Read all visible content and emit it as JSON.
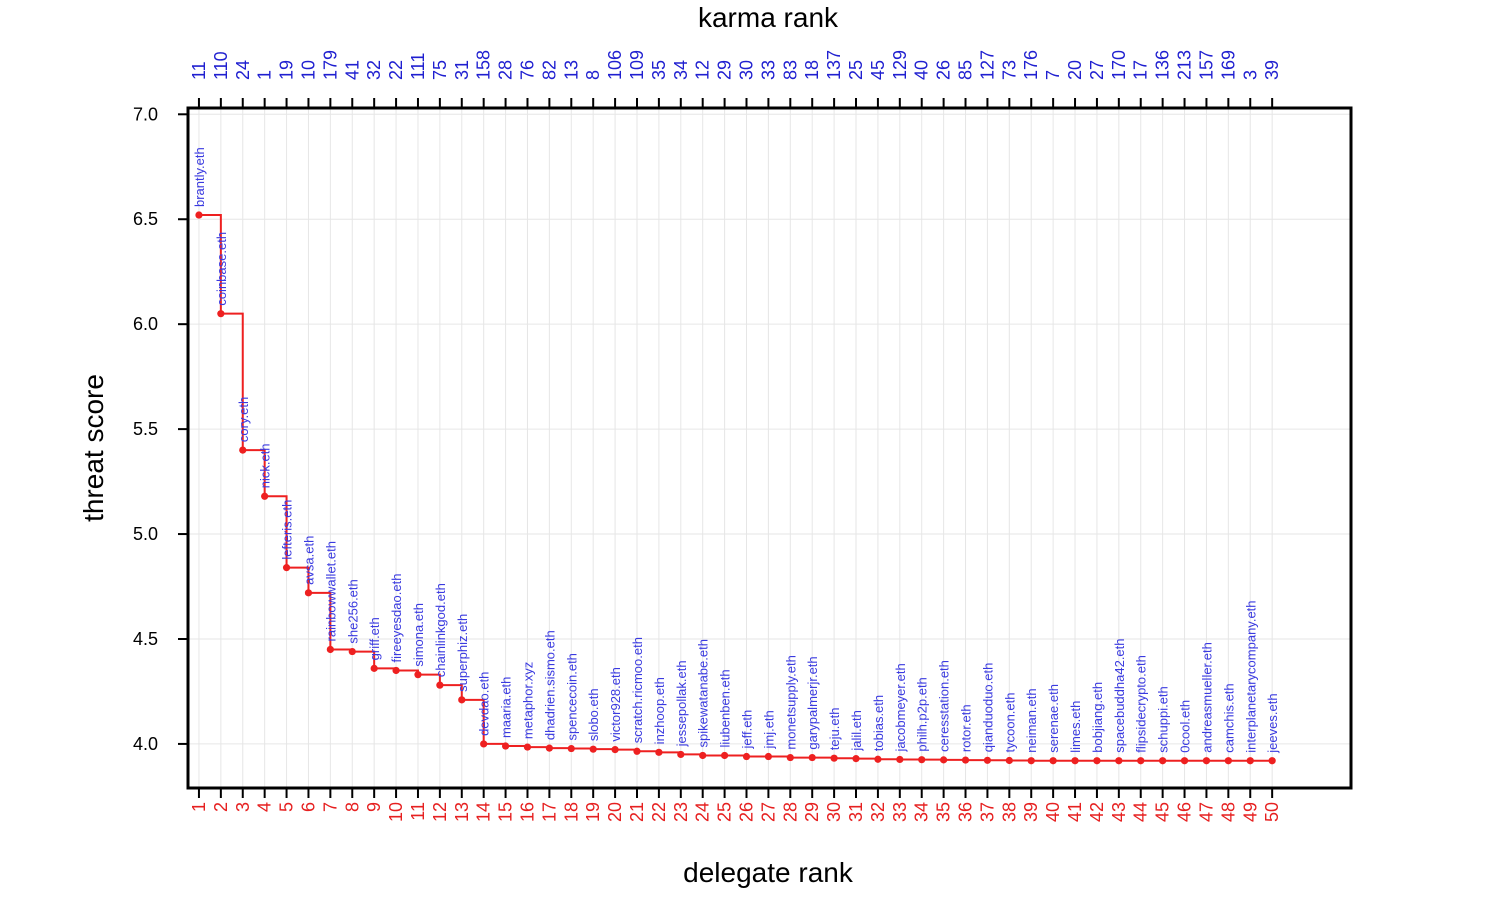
{
  "chart_data": {
    "type": "line",
    "title": "",
    "xlabel": "delegate rank",
    "ylabel": "threat score",
    "x2label": "karma rank",
    "xlim": [
      0.5,
      53.6
    ],
    "ylim": [
      3.79,
      7.03
    ],
    "yticks": [
      4.0,
      4.5,
      5.0,
      5.5,
      6.0,
      6.5,
      7.0
    ],
    "grid": true,
    "step": "post",
    "colors": {
      "line": "#ee2020",
      "marker": "#ee2020",
      "point_label": "#3a3ae0",
      "karma_rank": "#1f1fd0",
      "delegate_rank": "#e62020"
    },
    "delegate_rank": [
      1,
      2,
      3,
      4,
      5,
      6,
      7,
      8,
      9,
      10,
      11,
      12,
      13,
      14,
      15,
      16,
      17,
      18,
      19,
      20,
      21,
      22,
      23,
      24,
      25,
      26,
      27,
      28,
      29,
      30,
      31,
      32,
      33,
      34,
      35,
      36,
      37,
      38,
      39,
      40,
      41,
      42,
      43,
      44,
      45,
      46,
      47,
      48,
      49,
      50
    ],
    "karma_rank": [
      11,
      110,
      24,
      1,
      19,
      10,
      179,
      41,
      32,
      22,
      111,
      75,
      31,
      158,
      28,
      76,
      82,
      13,
      8,
      106,
      109,
      35,
      34,
      12,
      29,
      30,
      33,
      83,
      18,
      137,
      25,
      45,
      129,
      40,
      26,
      85,
      127,
      73,
      176,
      7,
      20,
      27,
      170,
      17,
      136,
      213,
      157,
      169,
      3,
      39
    ],
    "labels": [
      "brantly.eth",
      "coinbase.eth",
      "cory.eth",
      "nick.eth",
      "lefteris.eth",
      "avsa.eth",
      "rainbowwallet.eth",
      "she256.eth",
      "griff.eth",
      "fireeyesdao.eth",
      "simona.eth",
      "chainlinkgod.eth",
      "superphiz.eth",
      "devdao.eth",
      "maaria.eth",
      "metaphor.xyz",
      "dhadrien.sismo.eth",
      "spencecoin.eth",
      "slobo.eth",
      "victor928.eth",
      "scratch.ricmoo.eth",
      "inzhoop.eth",
      "jessepollak.eth",
      "spikewatanabe.eth",
      "liubenben.eth",
      "jeff.eth",
      "jmj.eth",
      "monetsupply.eth",
      "garypalmerjr.eth",
      "teju.eth",
      "jalil.eth",
      "tobias.eth",
      "jacobmeyer.eth",
      "philh.p2p.eth",
      "ceresstation.eth",
      "rotor.eth",
      "qianduoduo.eth",
      "tycoon.eth",
      "neiman.eth",
      "serenae.eth",
      "limes.eth",
      "bobjiang.eth",
      "spacebuddha42.eth",
      "flipsidecrypto.eth",
      "schuppi.eth",
      "0cool.eth",
      "andreasmueller.eth",
      "camchis.eth",
      "interplanetarycompany.eth",
      "jeeves.eth"
    ],
    "series": [
      {
        "values": [
          6.52,
          6.05,
          5.4,
          5.18,
          4.84,
          4.72,
          4.45,
          4.44,
          4.36,
          4.35,
          4.33,
          4.28,
          4.21,
          4.0,
          3.99,
          3.985,
          3.98,
          3.978,
          3.975,
          3.973,
          3.965,
          3.96,
          3.95,
          3.945,
          3.945,
          3.94,
          3.94,
          3.935,
          3.935,
          3.932,
          3.93,
          3.927,
          3.926,
          3.925,
          3.924,
          3.923,
          3.922,
          3.921,
          3.92,
          3.92,
          3.92,
          3.92,
          3.92,
          3.92,
          3.92,
          3.92,
          3.92,
          3.92,
          3.92,
          3.92
        ]
      }
    ]
  }
}
